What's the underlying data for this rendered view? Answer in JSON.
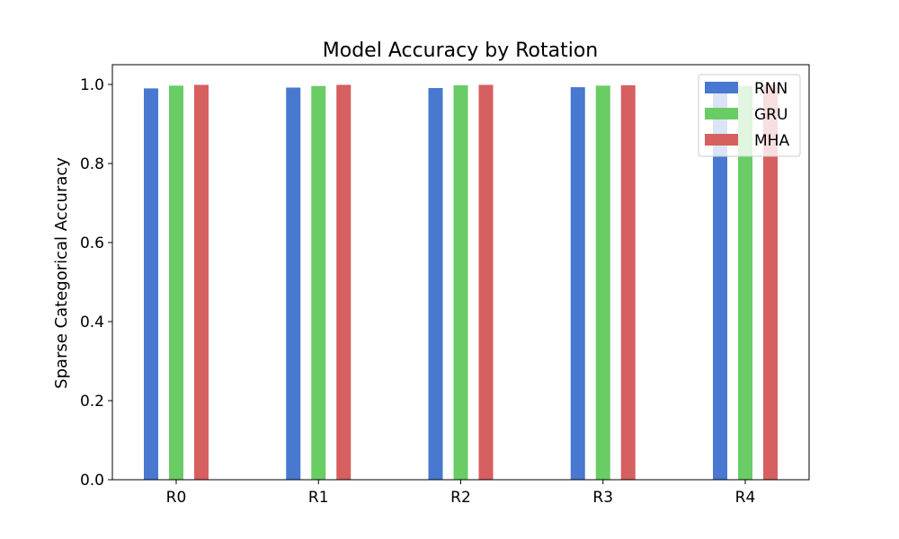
{
  "chart_data": {
    "type": "bar",
    "title": "Model Accuracy by Rotation",
    "xlabel": "",
    "ylabel": "Sparse Categorical Accuracy",
    "categories": [
      "R0",
      "R1",
      "R2",
      "R3",
      "R4"
    ],
    "series": [
      {
        "name": "RNN",
        "color": "#4878cf",
        "values": [
          0.99,
          0.992,
          0.991,
          0.993,
          0.992
        ]
      },
      {
        "name": "GRU",
        "color": "#6acc65",
        "values": [
          0.997,
          0.996,
          0.998,
          0.997,
          0.996
        ]
      },
      {
        "name": "MHA",
        "color": "#d65f5f",
        "values": [
          0.999,
          0.999,
          0.999,
          0.998,
          0.999
        ]
      }
    ],
    "ylim": [
      0,
      1.05
    ],
    "yticks": [
      "0.0",
      "0.2",
      "0.4",
      "0.6",
      "0.8",
      "1.0"
    ],
    "grid": false,
    "legend_position": "top-right"
  }
}
